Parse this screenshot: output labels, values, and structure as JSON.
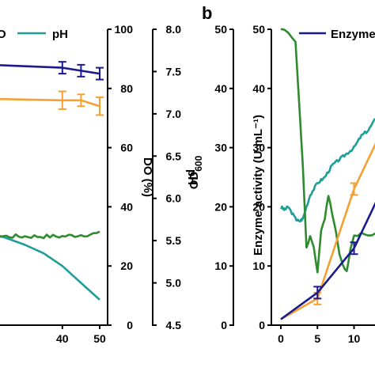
{
  "chart_data": [
    {
      "type": "line",
      "panel": "left",
      "xlim": [
        0,
        52
      ],
      "x_ticks": [
        "40",
        "50"
      ],
      "axes": {
        "right_outer": {
          "label": "pH",
          "ylim": [
            4.5,
            8.0
          ],
          "ticks": [
            "4.5",
            "5.0",
            "5.5",
            "6.0",
            "6.5",
            "7.0",
            "7.5",
            "8.0"
          ]
        },
        "right_inner": {
          "label": "DO (%)",
          "ylim": [
            0,
            100
          ],
          "ticks": [
            "0",
            "20",
            "40",
            "60",
            "80",
            "100"
          ]
        }
      },
      "legend": {
        "placement": "top",
        "entries": [
          "O",
          "pH"
        ]
      },
      "series": [
        {
          "name": "pH",
          "color": "#1e9e97",
          "axis": "right_outer",
          "x": [
            0,
            5,
            10,
            15,
            20,
            25,
            30,
            35,
            40,
            45,
            50
          ],
          "values": [
            5.85,
            5.8,
            5.75,
            5.68,
            5.6,
            5.53,
            5.45,
            5.35,
            5.2,
            5.0,
            4.8
          ]
        },
        {
          "color": "#2e8b2e",
          "axis": "right_inner",
          "x": [
            0,
            10,
            20,
            30,
            40,
            50
          ],
          "values": [
            30,
            30,
            30,
            30,
            30,
            31
          ]
        },
        {
          "color": "#1a1a8c",
          "axis": "right_inner",
          "x": [
            0,
            40,
            45,
            50
          ],
          "values": [
            89,
            87,
            86,
            85
          ],
          "error": [
            0,
            2,
            2,
            2
          ]
        },
        {
          "color": "#f5a033",
          "axis": "right_inner",
          "x": [
            0,
            40,
            45,
            50
          ],
          "values": [
            77,
            76,
            76,
            74
          ],
          "error": [
            0,
            3,
            2,
            3
          ]
        }
      ]
    },
    {
      "type": "line",
      "panel": "right",
      "panel_label": "b",
      "xlim": [
        0,
        15
      ],
      "x_ticks": [
        "0",
        "5",
        "10"
      ],
      "axes": {
        "left_outer": {
          "label": "OD600",
          "ylim": [
            0,
            50
          ],
          "ticks": [
            "0",
            "10",
            "20",
            "30",
            "40",
            "50"
          ]
        },
        "left_inner": {
          "label": "Enzyme activity (U·mL⁻¹)",
          "ylim": [
            0,
            50
          ],
          "ticks": [
            "0",
            "10",
            "20",
            "30",
            "40",
            "50"
          ]
        }
      },
      "legend": {
        "placement": "top",
        "entries": [
          "Enzyme"
        ]
      },
      "series": [
        {
          "name": "Enzyme",
          "color": "#1a1a8c",
          "x": [
            0,
            5,
            10,
            15
          ],
          "values": [
            1,
            5.5,
            13,
            26
          ],
          "error": [
            0,
            1,
            1,
            1
          ]
        },
        {
          "color": "#f5a033",
          "x": [
            0,
            5,
            10,
            15
          ],
          "values": [
            1,
            4.5,
            23,
            36
          ],
          "error": [
            0,
            1,
            1,
            1
          ]
        },
        {
          "color": "#1e9e97",
          "x": [
            0,
            0.5,
            1,
            2,
            2.5,
            3,
            4,
            5,
            6,
            7,
            8,
            9,
            10,
            11,
            12,
            13,
            14,
            15
          ],
          "values": [
            20,
            19.5,
            20,
            18,
            17.5,
            18,
            22,
            24,
            25,
            27,
            28,
            29,
            30,
            32,
            33,
            35,
            36.5,
            37.5
          ]
        },
        {
          "color": "#2e8b2e",
          "x": [
            0,
            1,
            2,
            3,
            3.5,
            4,
            4.5,
            5,
            5.5,
            6,
            6.5,
            7,
            7.5,
            8,
            8.5,
            9,
            9.5,
            10,
            11,
            12,
            13,
            14,
            15
          ],
          "values": [
            50,
            49.5,
            48,
            27,
            13,
            15,
            13,
            9,
            16,
            18,
            22,
            19,
            16,
            12,
            10,
            9,
            13,
            15,
            15.5,
            15,
            15.5,
            16,
            16
          ]
        }
      ]
    }
  ]
}
